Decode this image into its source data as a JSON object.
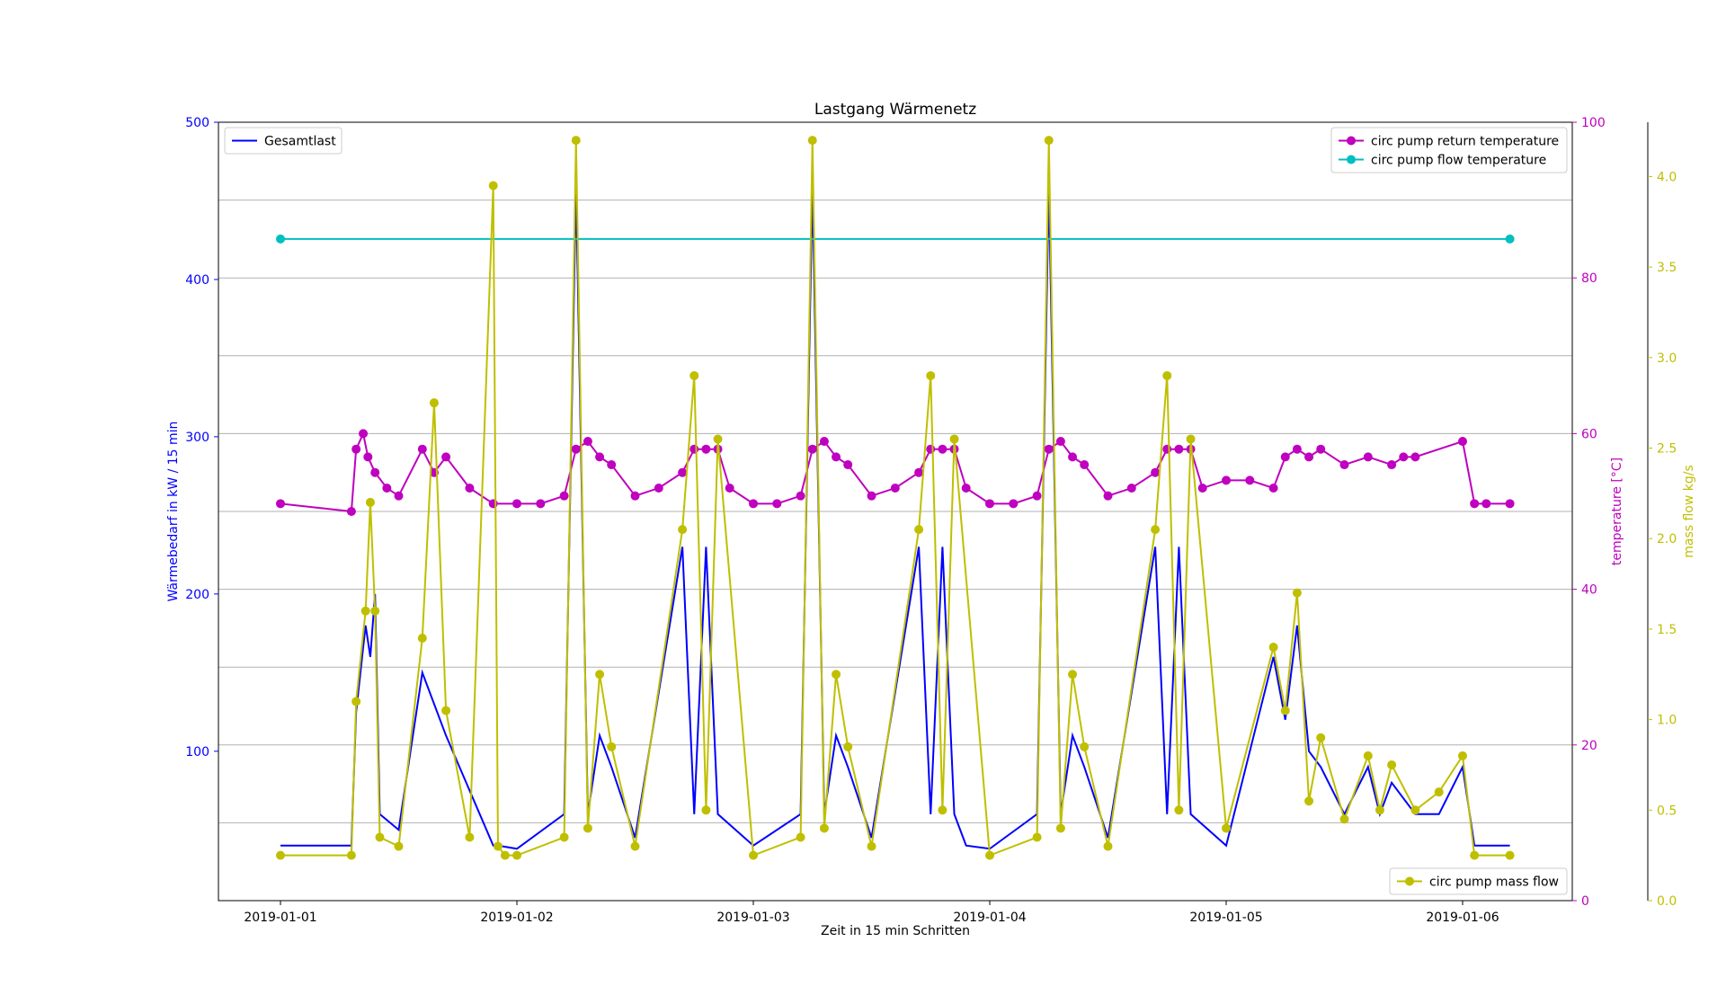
{
  "chart_data": {
    "type": "line",
    "title": "Lastgang Wärmenetz",
    "xlabel": "Zeit in 15 min Schritten",
    "x_tick_labels": [
      "2019-01-01",
      "2019-01-02",
      "2019-01-03",
      "2019-01-04",
      "2019-01-05",
      "2019-01-06"
    ],
    "grid": "horizontal lines aligned to right temperature axis",
    "axes": {
      "left": {
        "label": "Wärmebedarf in kW / 15 min",
        "color": "#0000ff",
        "ylim": [
          5,
          500
        ],
        "ticks": [
          100,
          200,
          300,
          400,
          500
        ]
      },
      "right_temperature": {
        "label": "temperature [°C]",
        "color": "#bf00bf",
        "ylim": [
          0,
          100
        ],
        "ticks": [
          0,
          20,
          40,
          60,
          80,
          100
        ]
      },
      "right_massflow": {
        "label": "mass flow kg/s",
        "color": "#bfbf00",
        "ylim": [
          0,
          4.3
        ],
        "ticks": [
          0.0,
          0.5,
          1.0,
          1.5,
          2.0,
          2.5,
          3.0,
          3.5,
          4.0
        ],
        "tick_labels": [
          "0.0",
          "0.5",
          "1.0",
          "1.5",
          "2.0",
          "2.5",
          "3.0",
          "3.5",
          "4.0"
        ]
      }
    },
    "legends": [
      {
        "placement": "upper-left",
        "entries": [
          {
            "name": "Gesamtlast",
            "color": "#0000ff",
            "marker": false
          }
        ]
      },
      {
        "placement": "upper-right",
        "entries": [
          {
            "name": "circ pump return temperature",
            "color": "#bf00bf",
            "marker": true
          },
          {
            "name": "circ pump flow temperature",
            "color": "#00bfbf",
            "marker": true
          }
        ]
      },
      {
        "placement": "lower-right",
        "entries": [
          {
            "name": "circ pump mass flow",
            "color": "#bfbf00",
            "marker": true
          }
        ]
      }
    ],
    "series": [
      {
        "name": "Gesamtlast",
        "axis": "left",
        "color": "#0000ff",
        "x": [
          0.0,
          0.3,
          0.32,
          0.36,
          0.38,
          0.4,
          0.42,
          0.5,
          0.6,
          0.7,
          0.9,
          0.92,
          1.0,
          1.2,
          1.25,
          1.3,
          1.35,
          1.4,
          1.5,
          1.7,
          1.75,
          1.8,
          1.85,
          2.0,
          2.2,
          2.25,
          2.3,
          2.35,
          2.4,
          2.5,
          2.7,
          2.75,
          2.8,
          2.85,
          2.9,
          3.0,
          3.2,
          3.25,
          3.3,
          3.35,
          3.4,
          3.5,
          3.7,
          3.75,
          3.8,
          3.85,
          4.0,
          4.2,
          4.25,
          4.3,
          4.35,
          4.4,
          4.5,
          4.6,
          4.65,
          4.7,
          4.8,
          4.9,
          5.0,
          5.05,
          5.2
        ],
        "values": [
          40,
          40,
          125,
          180,
          160,
          200,
          60,
          50,
          150,
          110,
          40,
          40,
          38,
          60,
          460,
          60,
          110,
          90,
          45,
          230,
          60,
          230,
          60,
          40,
          60,
          460,
          60,
          110,
          90,
          45,
          230,
          60,
          230,
          60,
          40,
          38,
          60,
          460,
          60,
          110,
          90,
          45,
          230,
          60,
          230,
          60,
          40,
          160,
          120,
          180,
          100,
          90,
          60,
          90,
          60,
          80,
          60,
          60,
          90,
          40,
          40
        ]
      },
      {
        "name": "circ pump flow temperature",
        "axis": "right_temperature",
        "color": "#00bfbf",
        "x": [
          0.0,
          5.2
        ],
        "values": [
          85.0,
          85.0
        ]
      },
      {
        "name": "circ pump return temperature",
        "axis": "right_temperature",
        "color": "#bf00bf",
        "x": [
          0.0,
          0.3,
          0.32,
          0.35,
          0.37,
          0.4,
          0.45,
          0.5,
          0.6,
          0.65,
          0.7,
          0.8,
          0.9,
          1.0,
          1.1,
          1.2,
          1.25,
          1.3,
          1.35,
          1.4,
          1.5,
          1.6,
          1.7,
          1.75,
          1.8,
          1.85,
          1.9,
          2.0,
          2.1,
          2.2,
          2.25,
          2.3,
          2.35,
          2.4,
          2.5,
          2.6,
          2.7,
          2.75,
          2.8,
          2.85,
          2.9,
          3.0,
          3.1,
          3.2,
          3.25,
          3.3,
          3.35,
          3.4,
          3.5,
          3.6,
          3.7,
          3.75,
          3.8,
          3.85,
          3.9,
          4.0,
          4.1,
          4.2,
          4.25,
          4.3,
          4.35,
          4.4,
          4.5,
          4.6,
          4.7,
          4.75,
          4.8,
          5.0,
          5.05,
          5.1,
          5.2
        ],
        "values": [
          51,
          50,
          58,
          60,
          57,
          55,
          53,
          52,
          58,
          55,
          57,
          53,
          51,
          51,
          51,
          52,
          58,
          59,
          57,
          56,
          52,
          53,
          55,
          58,
          58,
          58,
          53,
          51,
          51,
          52,
          58,
          59,
          57,
          56,
          52,
          53,
          55,
          58,
          58,
          58,
          53,
          51,
          51,
          52,
          58,
          59,
          57,
          56,
          52,
          53,
          55,
          58,
          58,
          58,
          53,
          54,
          54,
          53,
          57,
          58,
          57,
          58,
          56,
          57,
          56,
          57,
          57,
          59,
          51,
          51,
          51
        ]
      },
      {
        "name": "circ pump mass flow",
        "axis": "right_massflow",
        "color": "#bfbf00",
        "x": [
          0.0,
          0.3,
          0.32,
          0.36,
          0.38,
          0.4,
          0.42,
          0.5,
          0.6,
          0.65,
          0.7,
          0.8,
          0.9,
          0.92,
          0.95,
          1.0,
          1.2,
          1.25,
          1.3,
          1.35,
          1.4,
          1.5,
          1.7,
          1.75,
          1.8,
          1.85,
          2.0,
          2.2,
          2.25,
          2.3,
          2.35,
          2.4,
          2.5,
          2.7,
          2.75,
          2.8,
          2.85,
          3.0,
          3.2,
          3.25,
          3.3,
          3.35,
          3.4,
          3.5,
          3.7,
          3.75,
          3.8,
          3.85,
          4.0,
          4.2,
          4.25,
          4.3,
          4.35,
          4.4,
          4.5,
          4.6,
          4.65,
          4.7,
          4.8,
          4.9,
          5.0,
          5.05,
          5.2
        ],
        "values": [
          0.25,
          0.25,
          1.1,
          1.6,
          2.2,
          1.6,
          0.35,
          0.3,
          1.45,
          2.75,
          1.05,
          0.35,
          3.95,
          0.3,
          0.25,
          0.25,
          0.35,
          4.2,
          0.4,
          1.25,
          0.85,
          0.3,
          2.05,
          2.9,
          0.5,
          2.55,
          0.25,
          0.35,
          4.2,
          0.4,
          1.25,
          0.85,
          0.3,
          2.05,
          2.9,
          0.5,
          2.55,
          0.25,
          0.35,
          4.2,
          0.4,
          1.25,
          0.85,
          0.3,
          2.05,
          2.9,
          0.5,
          2.55,
          0.4,
          1.4,
          1.05,
          1.7,
          0.55,
          0.9,
          0.45,
          0.8,
          0.5,
          0.75,
          0.5,
          0.6,
          0.8,
          0.25,
          0.25
        ]
      }
    ]
  }
}
